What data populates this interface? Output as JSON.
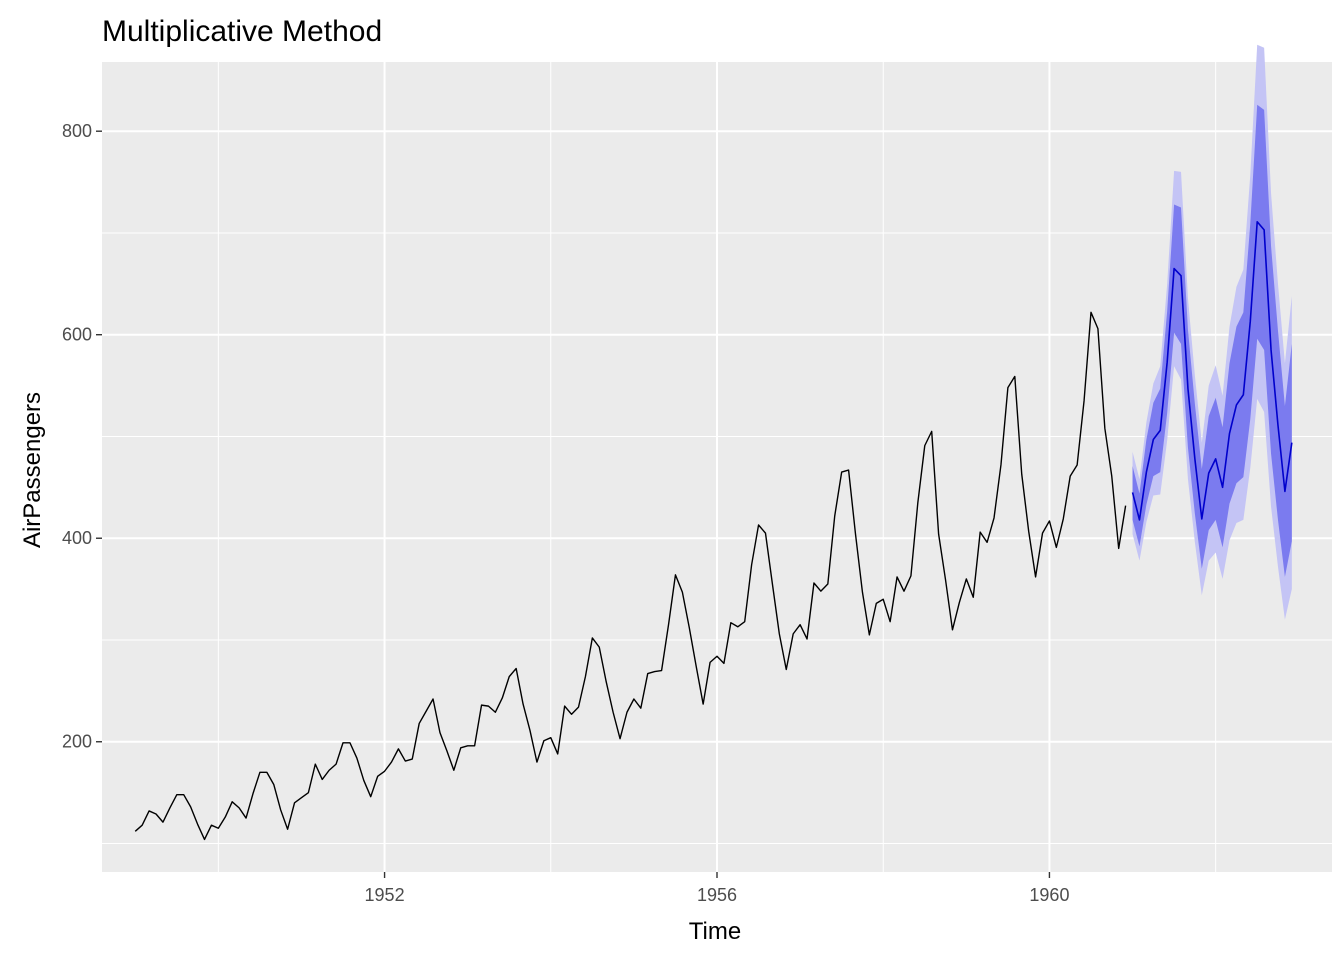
{
  "chart_data": {
    "type": "line",
    "title": "Multiplicative Method",
    "xlabel": "Time",
    "ylabel": "AirPassengers",
    "xlim": [
      1948.6,
      1963.4
    ],
    "ylim": [
      72,
      868
    ],
    "x_ticks": [
      1952,
      1956,
      1960
    ],
    "x_tick_labels": [
      "1952",
      "1956",
      "1960"
    ],
    "y_ticks": [
      200,
      400,
      600,
      800
    ],
    "y_tick_labels": [
      "200",
      "400",
      "600",
      "800"
    ],
    "grid": true,
    "legend": "none",
    "colors": {
      "panel": "#ebebeb",
      "grid": "#ffffff",
      "observed": "#000000",
      "forecast": "#0000cc",
      "pi80": "#7b7bef",
      "pi95": "#c4c4f5"
    },
    "observed": {
      "start": 1949,
      "frequency": 12,
      "values": [
        112,
        118,
        132,
        129,
        121,
        135,
        148,
        148,
        136,
        119,
        104,
        118,
        115,
        126,
        141,
        135,
        125,
        149,
        170,
        170,
        158,
        133,
        114,
        140,
        145,
        150,
        178,
        163,
        172,
        178,
        199,
        199,
        184,
        162,
        146,
        166,
        171,
        180,
        193,
        181,
        183,
        218,
        230,
        242,
        209,
        191,
        172,
        194,
        196,
        196,
        236,
        235,
        229,
        243,
        264,
        272,
        237,
        211,
        180,
        201,
        204,
        188,
        235,
        227,
        234,
        264,
        302,
        293,
        259,
        229,
        203,
        229,
        242,
        233,
        267,
        269,
        270,
        315,
        364,
        347,
        312,
        274,
        237,
        278,
        284,
        277,
        317,
        313,
        318,
        374,
        413,
        405,
        355,
        306,
        271,
        306,
        315,
        301,
        356,
        348,
        355,
        422,
        465,
        467,
        404,
        347,
        305,
        336,
        340,
        318,
        362,
        348,
        363,
        435,
        491,
        505,
        404,
        359,
        310,
        337,
        360,
        342,
        406,
        396,
        420,
        472,
        548,
        559,
        463,
        407,
        362,
        405,
        417,
        391,
        419,
        461,
        472,
        535,
        622,
        606,
        508,
        461,
        390,
        432
      ]
    },
    "forecast": {
      "start": 1961,
      "frequency": 12,
      "mean": [
        445,
        418,
        465,
        497,
        506,
        573,
        665,
        658,
        547,
        478,
        419,
        464,
        478,
        450,
        503,
        531,
        541,
        613,
        711,
        703,
        585,
        511,
        446,
        494
      ],
      "lo80": [
        418,
        392,
        433,
        461,
        465,
        523,
        602,
        591,
        489,
        424,
        370,
        408,
        418,
        391,
        434,
        454,
        460,
        517,
        596,
        585,
        483,
        418,
        362,
        397
      ],
      "hi80": [
        471,
        444,
        497,
        533,
        547,
        623,
        728,
        725,
        605,
        532,
        468,
        520,
        538,
        509,
        572,
        608,
        622,
        709,
        826,
        821,
        687,
        604,
        530,
        591
      ],
      "lo95": [
        404,
        378,
        416,
        442,
        443,
        496,
        569,
        556,
        458,
        396,
        344,
        378,
        386,
        360,
        398,
        415,
        418,
        469,
        537,
        524,
        431,
        372,
        320,
        350
      ],
      "hi95": [
        485,
        458,
        514,
        552,
        569,
        650,
        761,
        760,
        636,
        560,
        494,
        550,
        570,
        540,
        608,
        647,
        664,
        757,
        885,
        882,
        739,
        650,
        572,
        638
      ]
    }
  }
}
